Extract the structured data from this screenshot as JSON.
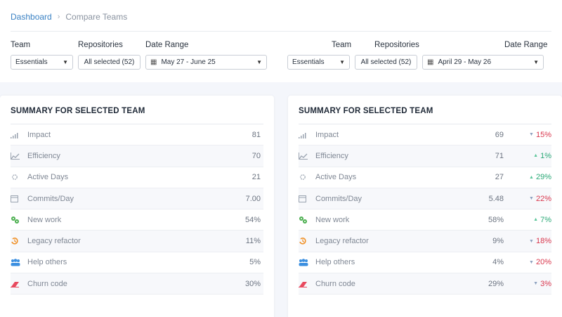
{
  "breadcrumb": {
    "home": "Dashboard",
    "separator": "›",
    "current": "Compare Teams"
  },
  "filters": {
    "left": {
      "team_label": "Team",
      "team_value": "Essentials",
      "repos_label": "Repositories",
      "repos_value": "All selected (52)",
      "date_label": "Date Range",
      "date_value": "May 27 - June 25"
    },
    "right": {
      "team_label": "Team",
      "team_value": "Essentials",
      "repos_label": "Repositories",
      "repos_value": "All selected (52)",
      "date_label": "Date Range",
      "date_value": "April 29 - May 26"
    }
  },
  "left_card": {
    "title": "SUMMARY FOR SELECTED TEAM",
    "rows": [
      {
        "label": "Impact",
        "value": "81",
        "icon": "signal-bars-icon"
      },
      {
        "label": "Efficiency",
        "value": "70",
        "icon": "line-chart-icon"
      },
      {
        "label": "Active Days",
        "value": "21",
        "icon": "sun-icon"
      },
      {
        "label": "Commits/Day",
        "value": "7.00",
        "icon": "calendar-icon"
      },
      {
        "label": "New work",
        "value": "54%",
        "icon": "gears-icon"
      },
      {
        "label": "Legacy refactor",
        "value": "11%",
        "icon": "history-icon"
      },
      {
        "label": "Help others",
        "value": "5%",
        "icon": "users-icon"
      },
      {
        "label": "Churn code",
        "value": "30%",
        "icon": "eraser-icon"
      }
    ]
  },
  "right_card": {
    "title": "SUMMARY FOR SELECTED TEAM",
    "rows": [
      {
        "label": "Impact",
        "value": "69",
        "delta": "15%",
        "direction": "down"
      },
      {
        "label": "Efficiency",
        "value": "71",
        "delta": "1%",
        "direction": "up"
      },
      {
        "label": "Active Days",
        "value": "27",
        "delta": "29%",
        "direction": "up"
      },
      {
        "label": "Commits/Day",
        "value": "5.48",
        "delta": "22%",
        "direction": "down"
      },
      {
        "label": "New work",
        "value": "58%",
        "delta": "7%",
        "direction": "up"
      },
      {
        "label": "Legacy refactor",
        "value": "9%",
        "delta": "18%",
        "direction": "down"
      },
      {
        "label": "Help others",
        "value": "4%",
        "delta": "20%",
        "direction": "down"
      },
      {
        "label": "Churn code",
        "value": "29%",
        "delta": "3%",
        "direction": "down"
      }
    ]
  },
  "colors": {
    "link": "#3b82c4",
    "down": "#d9364c",
    "up": "#2aa876",
    "new_work_icon": "#4caf50",
    "legacy_icon": "#f0932b",
    "help_icon": "#3b8fe0",
    "churn_icon": "#e84a5f"
  }
}
